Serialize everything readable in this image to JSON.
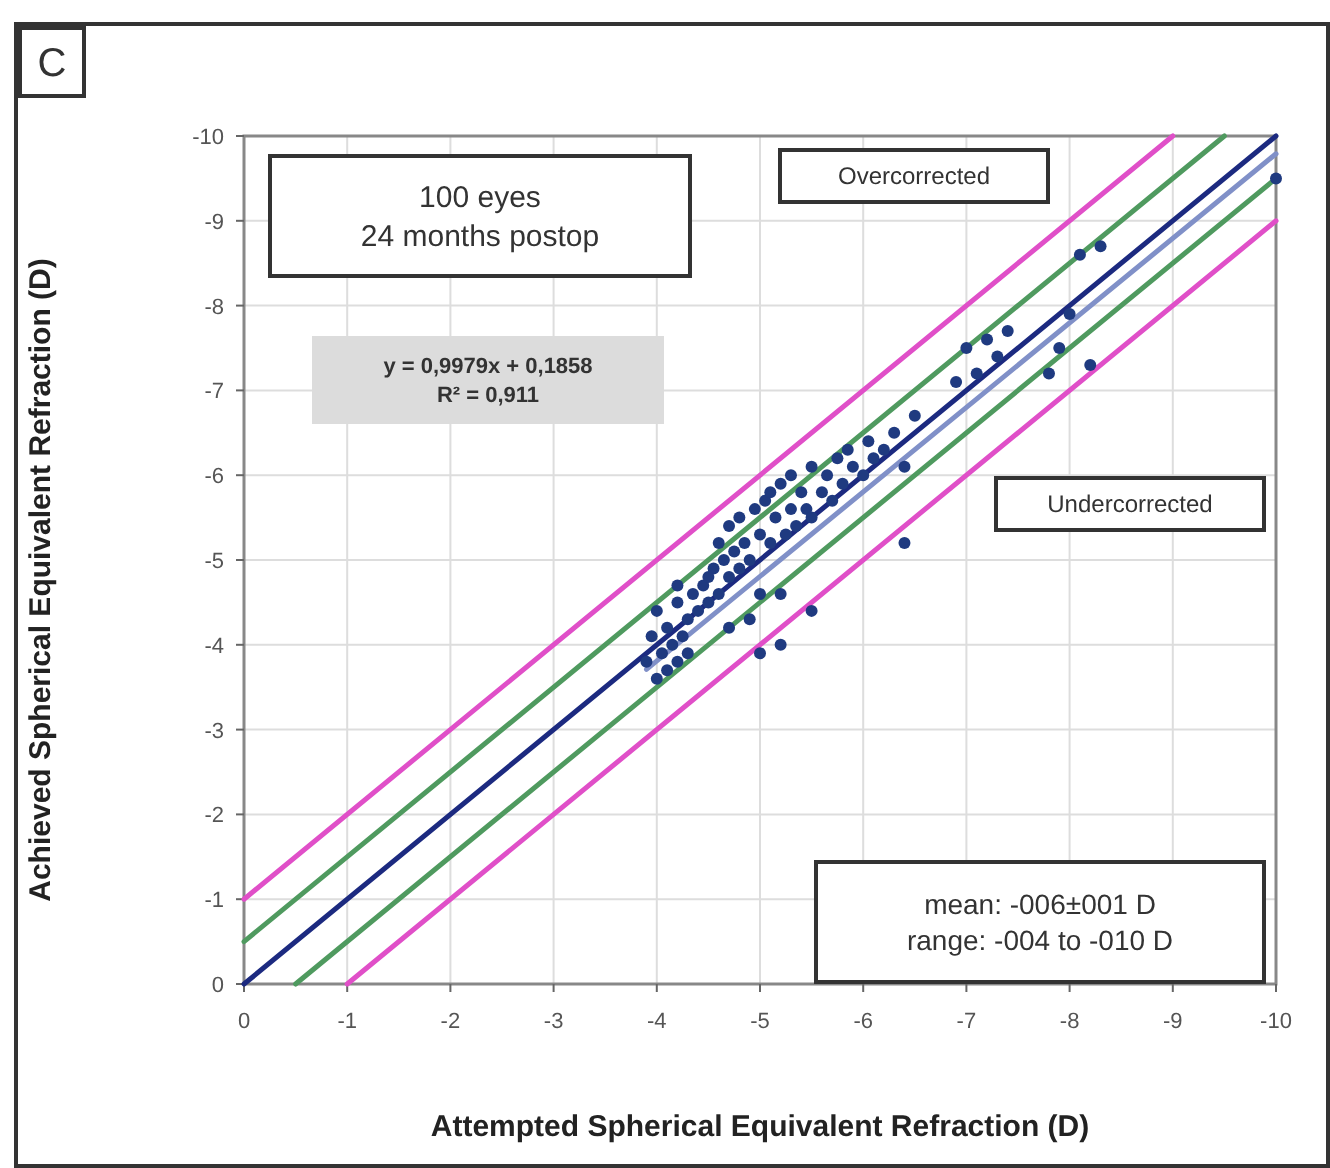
{
  "chart_data": {
    "type": "scatter",
    "xlabel": "Attempted Spherical Equivalent Refraction (D)",
    "ylabel": "Achieved Spherical Equivalent Refraction (D)",
    "xlim": [
      0,
      -10
    ],
    "ylim": [
      0,
      -10
    ],
    "xticks": [
      0,
      -1,
      -2,
      -3,
      -4,
      -5,
      -6,
      -7,
      -8,
      -9,
      -10
    ],
    "yticks": [
      0,
      -1,
      -2,
      -3,
      -4,
      -5,
      -6,
      -7,
      -8,
      -9,
      -10
    ],
    "grid": true,
    "annotations": [
      "C",
      "100 eyes\n24 months postop",
      "Overcorrected",
      "Undercorrected",
      "y = 0,9979x + 0,1858\nR² = 0,911",
      "mean: -006±001 D\nrange: -004 to -010 D"
    ],
    "series": [
      {
        "type": "line",
        "color": "#e04fc8",
        "x": [
          0,
          -9
        ],
        "values": [
          -1,
          -10
        ]
      },
      {
        "type": "line",
        "color": "#4f9a5f",
        "x": [
          0,
          -9.5
        ],
        "values": [
          -0.5,
          -10
        ]
      },
      {
        "type": "line",
        "color": "#1c2a80",
        "x": [
          0,
          -10
        ],
        "values": [
          0,
          -10
        ]
      },
      {
        "type": "line",
        "color": "#4f9a5f",
        "x": [
          -0.5,
          -10
        ],
        "values": [
          0,
          -9.5
        ]
      },
      {
        "type": "line",
        "color": "#e04fc8",
        "x": [
          -1,
          -10
        ],
        "values": [
          0,
          -9
        ]
      },
      {
        "type": "line",
        "color": "#8090c8",
        "x": [
          -3.9,
          -10
        ],
        "values": [
          -3.71,
          -9.79
        ]
      },
      {
        "color": "#1f3a80",
        "marker": "circle",
        "x": [
          -3.9,
          -3.95,
          -4.0,
          -4.0,
          -4.05,
          -4.1,
          -4.1,
          -4.15,
          -4.2,
          -4.2,
          -4.25,
          -4.3,
          -4.3,
          -4.35,
          -4.4,
          -4.45,
          -4.5,
          -4.55,
          -4.6,
          -4.6,
          -4.65,
          -4.7,
          -4.7,
          -4.75,
          -4.8,
          -4.8,
          -4.85,
          -4.9,
          -4.95,
          -5.0,
          -5.0,
          -5.05,
          -5.1,
          -5.1,
          -5.15,
          -5.2,
          -5.25,
          -5.3,
          -5.3,
          -5.35,
          -5.4,
          -5.45,
          -5.5,
          -5.5,
          -5.6,
          -5.65,
          -5.7,
          -5.75,
          -5.8,
          -5.85,
          -5.9,
          -6.0,
          -6.05,
          -6.1,
          -6.2,
          -6.3,
          -6.4,
          -6.5,
          -6.9,
          -7.0,
          -7.1,
          -7.2,
          -7.3,
          -7.4,
          -7.8,
          -7.9,
          -8.0,
          -8.1,
          -8.2,
          -8.3,
          -10.0,
          -5.0,
          -5.2,
          -5.5,
          -6.4,
          -4.7,
          -4.9,
          -5.2,
          -4.5,
          -4.2
        ],
        "values": [
          -3.8,
          -4.1,
          -3.6,
          -4.4,
          -3.9,
          -4.2,
          -3.7,
          -4.0,
          -4.5,
          -3.8,
          -4.1,
          -4.3,
          -3.9,
          -4.6,
          -4.4,
          -4.7,
          -4.5,
          -4.9,
          -4.6,
          -5.2,
          -5.0,
          -4.8,
          -5.4,
          -5.1,
          -4.9,
          -5.5,
          -5.2,
          -5.0,
          -5.6,
          -5.3,
          -4.6,
          -5.7,
          -5.2,
          -5.8,
          -5.5,
          -5.9,
          -5.3,
          -5.6,
          -6.0,
          -5.4,
          -5.8,
          -5.6,
          -6.1,
          -5.5,
          -5.8,
          -6.0,
          -5.7,
          -6.2,
          -5.9,
          -6.3,
          -6.1,
          -6.0,
          -6.4,
          -6.2,
          -6.3,
          -6.5,
          -6.1,
          -6.7,
          -7.1,
          -7.5,
          -7.2,
          -7.6,
          -7.4,
          -7.7,
          -7.2,
          -7.5,
          -7.9,
          -8.6,
          -7.3,
          -8.7,
          -9.5,
          -3.9,
          -4.0,
          -4.4,
          -5.2,
          -4.2,
          -4.3,
          -4.6,
          -4.8,
          -4.7
        ]
      }
    ]
  }
}
